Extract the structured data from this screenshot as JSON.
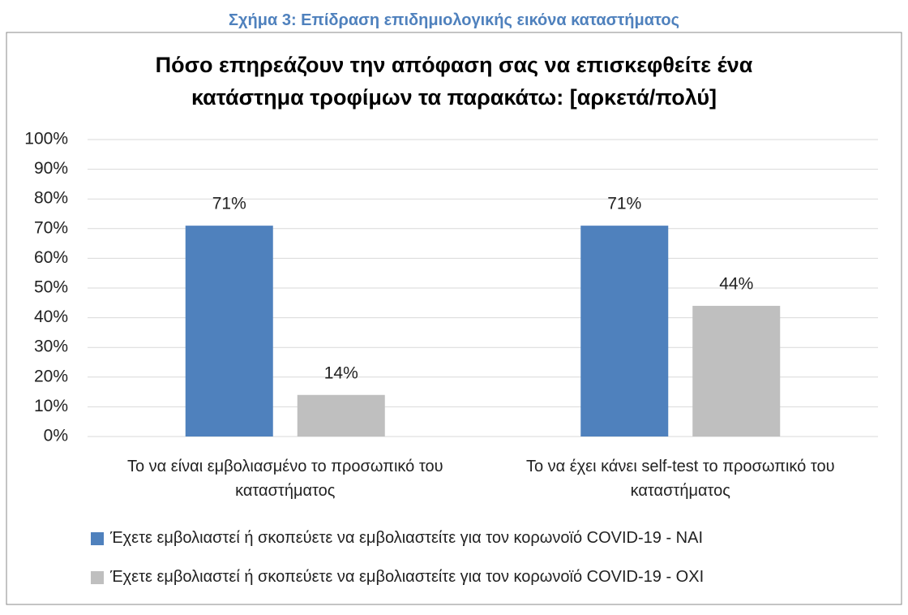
{
  "caption": "Σχήμα 3: Επίδραση επιδημιολογικής εικόνα καταστήματος",
  "chart_data": {
    "type": "bar",
    "title": "Πόσο επηρεάζουν την απόφαση σας να επισκεφθείτε ένα κατάστημα τροφίμων τα παρακάτω: [αρκετά/πολύ]",
    "categories": [
      "Το να είναι εμβολιασμένο το προσωπικό του καταστήματος",
      "Το να έχει κάνει self-test το προσωπικό του καταστήματος"
    ],
    "series": [
      {
        "name": "Έχετε εμβολιαστεί ή σκοπεύετε να εμβολιαστείτε για τον κορωνοϊό COVID-19 - ΝΑΙ",
        "color": "#4f81bd",
        "values": [
          71,
          71
        ],
        "value_labels": [
          "71%",
          "71%"
        ]
      },
      {
        "name": "Έχετε εμβολιαστεί ή σκοπεύετε να εμβολιαστείτε για τον κορωνοϊό COVID-19 - ΟΧΙ",
        "color": "#bfbfbf",
        "values": [
          14,
          44
        ],
        "value_labels": [
          "14%",
          "44%"
        ]
      }
    ],
    "ylim": [
      0,
      100
    ],
    "yticks": [
      {
        "value": 0,
        "label": "0%"
      },
      {
        "value": 10,
        "label": "10%"
      },
      {
        "value": 20,
        "label": "20%"
      },
      {
        "value": 30,
        "label": "30%"
      },
      {
        "value": 40,
        "label": "40%"
      },
      {
        "value": 50,
        "label": "50%"
      },
      {
        "value": 60,
        "label": "60%"
      },
      {
        "value": 70,
        "label": "70%"
      },
      {
        "value": 80,
        "label": "80%"
      },
      {
        "value": 90,
        "label": "90%"
      },
      {
        "value": 100,
        "label": "100%"
      }
    ],
    "grid": true,
    "legend": "bottom"
  }
}
